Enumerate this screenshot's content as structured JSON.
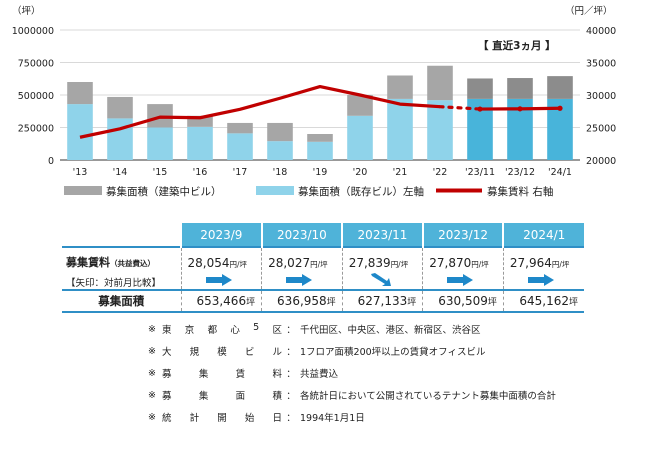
{
  "chart_data": {
    "type": "bar",
    "left_unit": "（坪）",
    "right_unit": "（円／坪）",
    "period_note": "【 直近3ヵ月 】",
    "categories": [
      "'13",
      "'14",
      "'15",
      "'16",
      "'17",
      "'18",
      "'19",
      "'20",
      "'21",
      "'22",
      "'23/11",
      "'23/12",
      "'24/1"
    ],
    "left_axis": {
      "ticks": [
        "1000000",
        "750000",
        "500000",
        "250000",
        "0"
      ],
      "ylim": [
        0,
        1000000
      ]
    },
    "right_axis": {
      "ticks": [
        "40000",
        "35000",
        "30000",
        "25000",
        "20000"
      ],
      "ylim": [
        20000,
        40000
      ]
    },
    "series": [
      {
        "name": "募集面積（既存ビル）左軸",
        "kind": "bar-bottom",
        "color": "#8fd3ea",
        "recent_color": "#48b4da",
        "values": [
          430000,
          320000,
          250000,
          255000,
          205000,
          145000,
          140000,
          340000,
          470000,
          460000,
          470000,
          470000,
          470000
        ]
      },
      {
        "name": "募集面積（建築中ビル）",
        "kind": "bar-top",
        "color": "#a6a6a6",
        "recent_color": "#8c8c8c",
        "values": [
          170000,
          165000,
          180000,
          85000,
          80000,
          140000,
          60000,
          160000,
          180000,
          265000,
          157133,
          160509,
          175162
        ]
      },
      {
        "name": "募集賃料 右軸",
        "kind": "line",
        "color": "#c00000",
        "values": [
          23500,
          24800,
          26600,
          26500,
          27800,
          29500,
          31300,
          30000,
          28600,
          28200,
          27839,
          27870,
          27964
        ]
      }
    ],
    "recent_count": 3
  },
  "table": {
    "headers": [
      "2023/9",
      "2023/10",
      "2023/11",
      "2023/12",
      "2024/1"
    ],
    "rent_label": "募集賃料",
    "rent_label_sub": "（共益費込）",
    "rent_note": "【矢印：対前月比較】",
    "rent_values": [
      "28,054",
      "28,027",
      "27,839",
      "27,870",
      "27,964"
    ],
    "rent_unit": "円/坪",
    "rent_trends": [
      "right",
      "right",
      "down",
      "right",
      "right"
    ],
    "area_label": "募集面積",
    "area_values": [
      "653,466",
      "636,958",
      "627,133",
      "630,509",
      "645,162"
    ],
    "area_unit": "坪"
  },
  "notes": [
    {
      "mark": "※",
      "label": "東京都心5区",
      "value": "千代田区、中央区、港区、新宿区、渋谷区"
    },
    {
      "mark": "※",
      "label": "大規模ビル",
      "value": "1フロア面積200坪以上の賃貸オフィスビル"
    },
    {
      "mark": "※",
      "label": "募集賃料",
      "value": "共益費込"
    },
    {
      "mark": "※",
      "label": "募集面積",
      "value": "各統計日において公開されているテナント募集中面積の合計"
    },
    {
      "mark": "※",
      "label": "統計開始日",
      "value": "1994年1月1日"
    }
  ],
  "colors": {
    "accent_blue": "#4fb3d9",
    "rule_blue": "#2f8fc6",
    "arrow_blue": "#1e88c9"
  }
}
